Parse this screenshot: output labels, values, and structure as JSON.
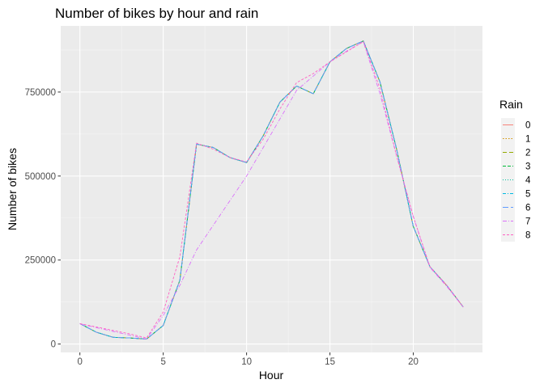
{
  "chart_data": {
    "type": "line",
    "title": "Number of bikes by hour and rain",
    "xlabel": "Hour",
    "ylabel": "Number of bikes",
    "xlim": [
      -1.15,
      24.15
    ],
    "ylim": [
      -25000,
      947000
    ],
    "xticks": [
      0,
      5,
      10,
      15,
      20
    ],
    "xtick_labels": [
      "0",
      "5",
      "10",
      "15",
      "20"
    ],
    "yticks": [
      0,
      250000,
      500000,
      750000
    ],
    "ytick_labels": [
      "0",
      "250000",
      "500000",
      "750000"
    ],
    "grid": true,
    "legend": {
      "title": "Rain",
      "placement": "right"
    },
    "series": [
      {
        "name": "0",
        "color": "#F8766D",
        "dash": "",
        "x": [
          0,
          1,
          2,
          3,
          4,
          5,
          6,
          7,
          8,
          9,
          10,
          11,
          12,
          13,
          14,
          15,
          16,
          17,
          18,
          19,
          20,
          21,
          22,
          23
        ],
        "y": [
          61000,
          35000,
          20000,
          18000,
          15000,
          55000,
          190000,
          595000,
          585000,
          555000,
          540000,
          620000,
          720000,
          768000,
          745000,
          840000,
          880000,
          902000,
          780000,
          580000,
          350000,
          230000,
          175000,
          110000
        ]
      },
      {
        "name": "1",
        "color": "#D39200",
        "dash": "1.5,2",
        "x": [
          0,
          1,
          2,
          3,
          4,
          5,
          6,
          7,
          8,
          9,
          10,
          11,
          12,
          13,
          14,
          15,
          16,
          17,
          18,
          19,
          20,
          21,
          22,
          23
        ],
        "y": [
          61000,
          35000,
          20000,
          18000,
          15000,
          55000,
          190000,
          595000,
          585000,
          555000,
          540000,
          620000,
          720000,
          768000,
          745000,
          840000,
          880000,
          902000,
          780000,
          580000,
          350000,
          230000,
          175000,
          110000
        ]
      },
      {
        "name": "2",
        "color": "#93AA00",
        "dash": "5,3",
        "x": [
          0,
          1,
          2,
          3,
          4,
          5,
          6,
          7,
          8,
          9,
          10,
          11,
          12,
          13,
          14,
          15,
          16,
          17,
          18,
          19,
          20,
          21,
          22,
          23
        ],
        "y": [
          61000,
          35000,
          20000,
          18000,
          15000,
          55000,
          190000,
          595000,
          585000,
          555000,
          540000,
          620000,
          720000,
          768000,
          745000,
          840000,
          880000,
          902000,
          780000,
          580000,
          350000,
          230000,
          175000,
          110000
        ]
      },
      {
        "name": "3",
        "color": "#00BA38",
        "dash": "4,2",
        "x": [
          0,
          1,
          2,
          3,
          4,
          5,
          6,
          7,
          8,
          9,
          10,
          11,
          12,
          13,
          14,
          15,
          16,
          17,
          18,
          19,
          20,
          21,
          22,
          23
        ],
        "y": [
          61000,
          35000,
          20000,
          18000,
          15000,
          55000,
          190000,
          595000,
          585000,
          555000,
          540000,
          620000,
          720000,
          768000,
          745000,
          840000,
          880000,
          902000,
          780000,
          580000,
          350000,
          230000,
          175000,
          110000
        ]
      },
      {
        "name": "4",
        "color": "#00C19F",
        "dash": "1,2",
        "x": [
          0,
          1,
          2,
          3,
          4,
          5,
          6,
          7,
          8,
          9,
          10,
          11,
          12,
          13,
          14,
          15,
          16,
          17,
          18,
          19,
          20,
          21,
          22,
          23
        ],
        "y": [
          61000,
          35000,
          20000,
          18000,
          15000,
          55000,
          190000,
          595000,
          585000,
          555000,
          540000,
          620000,
          720000,
          768000,
          745000,
          840000,
          880000,
          902000,
          780000,
          580000,
          350000,
          230000,
          175000,
          110000
        ]
      },
      {
        "name": "5",
        "color": "#00B9E3",
        "dash": "4,2,1,2",
        "x": [
          0,
          1,
          2,
          3,
          4,
          5,
          6,
          7,
          8,
          9,
          10,
          11,
          12,
          13,
          14,
          15,
          16,
          17,
          18,
          19,
          20,
          21,
          22,
          23
        ],
        "y": [
          61000,
          35000,
          20000,
          18000,
          15000,
          55000,
          190000,
          595000,
          585000,
          555000,
          540000,
          620000,
          720000,
          768000,
          745000,
          840000,
          880000,
          902000,
          780000,
          580000,
          350000,
          230000,
          175000,
          110000
        ]
      },
      {
        "name": "6",
        "color": "#619CFF",
        "dash": "7,3",
        "x": [
          0,
          1,
          2,
          3,
          4,
          5,
          6,
          7,
          8,
          9,
          10,
          11,
          12,
          13,
          14,
          15,
          16,
          17,
          18,
          19,
          20,
          21,
          22,
          23
        ],
        "y": [
          61000,
          35000,
          20000,
          18000,
          15000,
          55000,
          190000,
          595000,
          585000,
          555000,
          540000,
          620000,
          720000,
          768000,
          745000,
          840000,
          880000,
          902000,
          780000,
          580000,
          350000,
          230000,
          175000,
          110000
        ]
      },
      {
        "name": "7",
        "color": "#DB72FB",
        "dash": "5,2,1,2",
        "x": [
          0,
          4,
          5,
          6,
          7,
          10,
          13,
          15,
          16,
          17,
          18,
          19,
          20,
          21,
          22,
          23
        ],
        "y": [
          60000,
          15000,
          85000,
          175000,
          280000,
          500000,
          755000,
          840000,
          872000,
          900000,
          745000,
          560000,
          380000,
          228000,
          172000,
          110000
        ]
      },
      {
        "name": "8",
        "color": "#FF61C3",
        "dash": "3,2",
        "x": [
          0,
          3,
          4,
          5,
          6,
          7,
          8,
          9,
          10,
          11,
          12,
          13,
          14,
          15,
          16,
          17,
          18,
          19,
          20,
          21,
          22,
          23
        ],
        "y": [
          61000,
          30000,
          18000,
          95000,
          260000,
          598000,
          580000,
          555000,
          542000,
          610000,
          700000,
          778000,
          805000,
          840000,
          870000,
          900000,
          760000,
          560000,
          380000,
          230000,
          175000,
          110000
        ]
      }
    ]
  }
}
